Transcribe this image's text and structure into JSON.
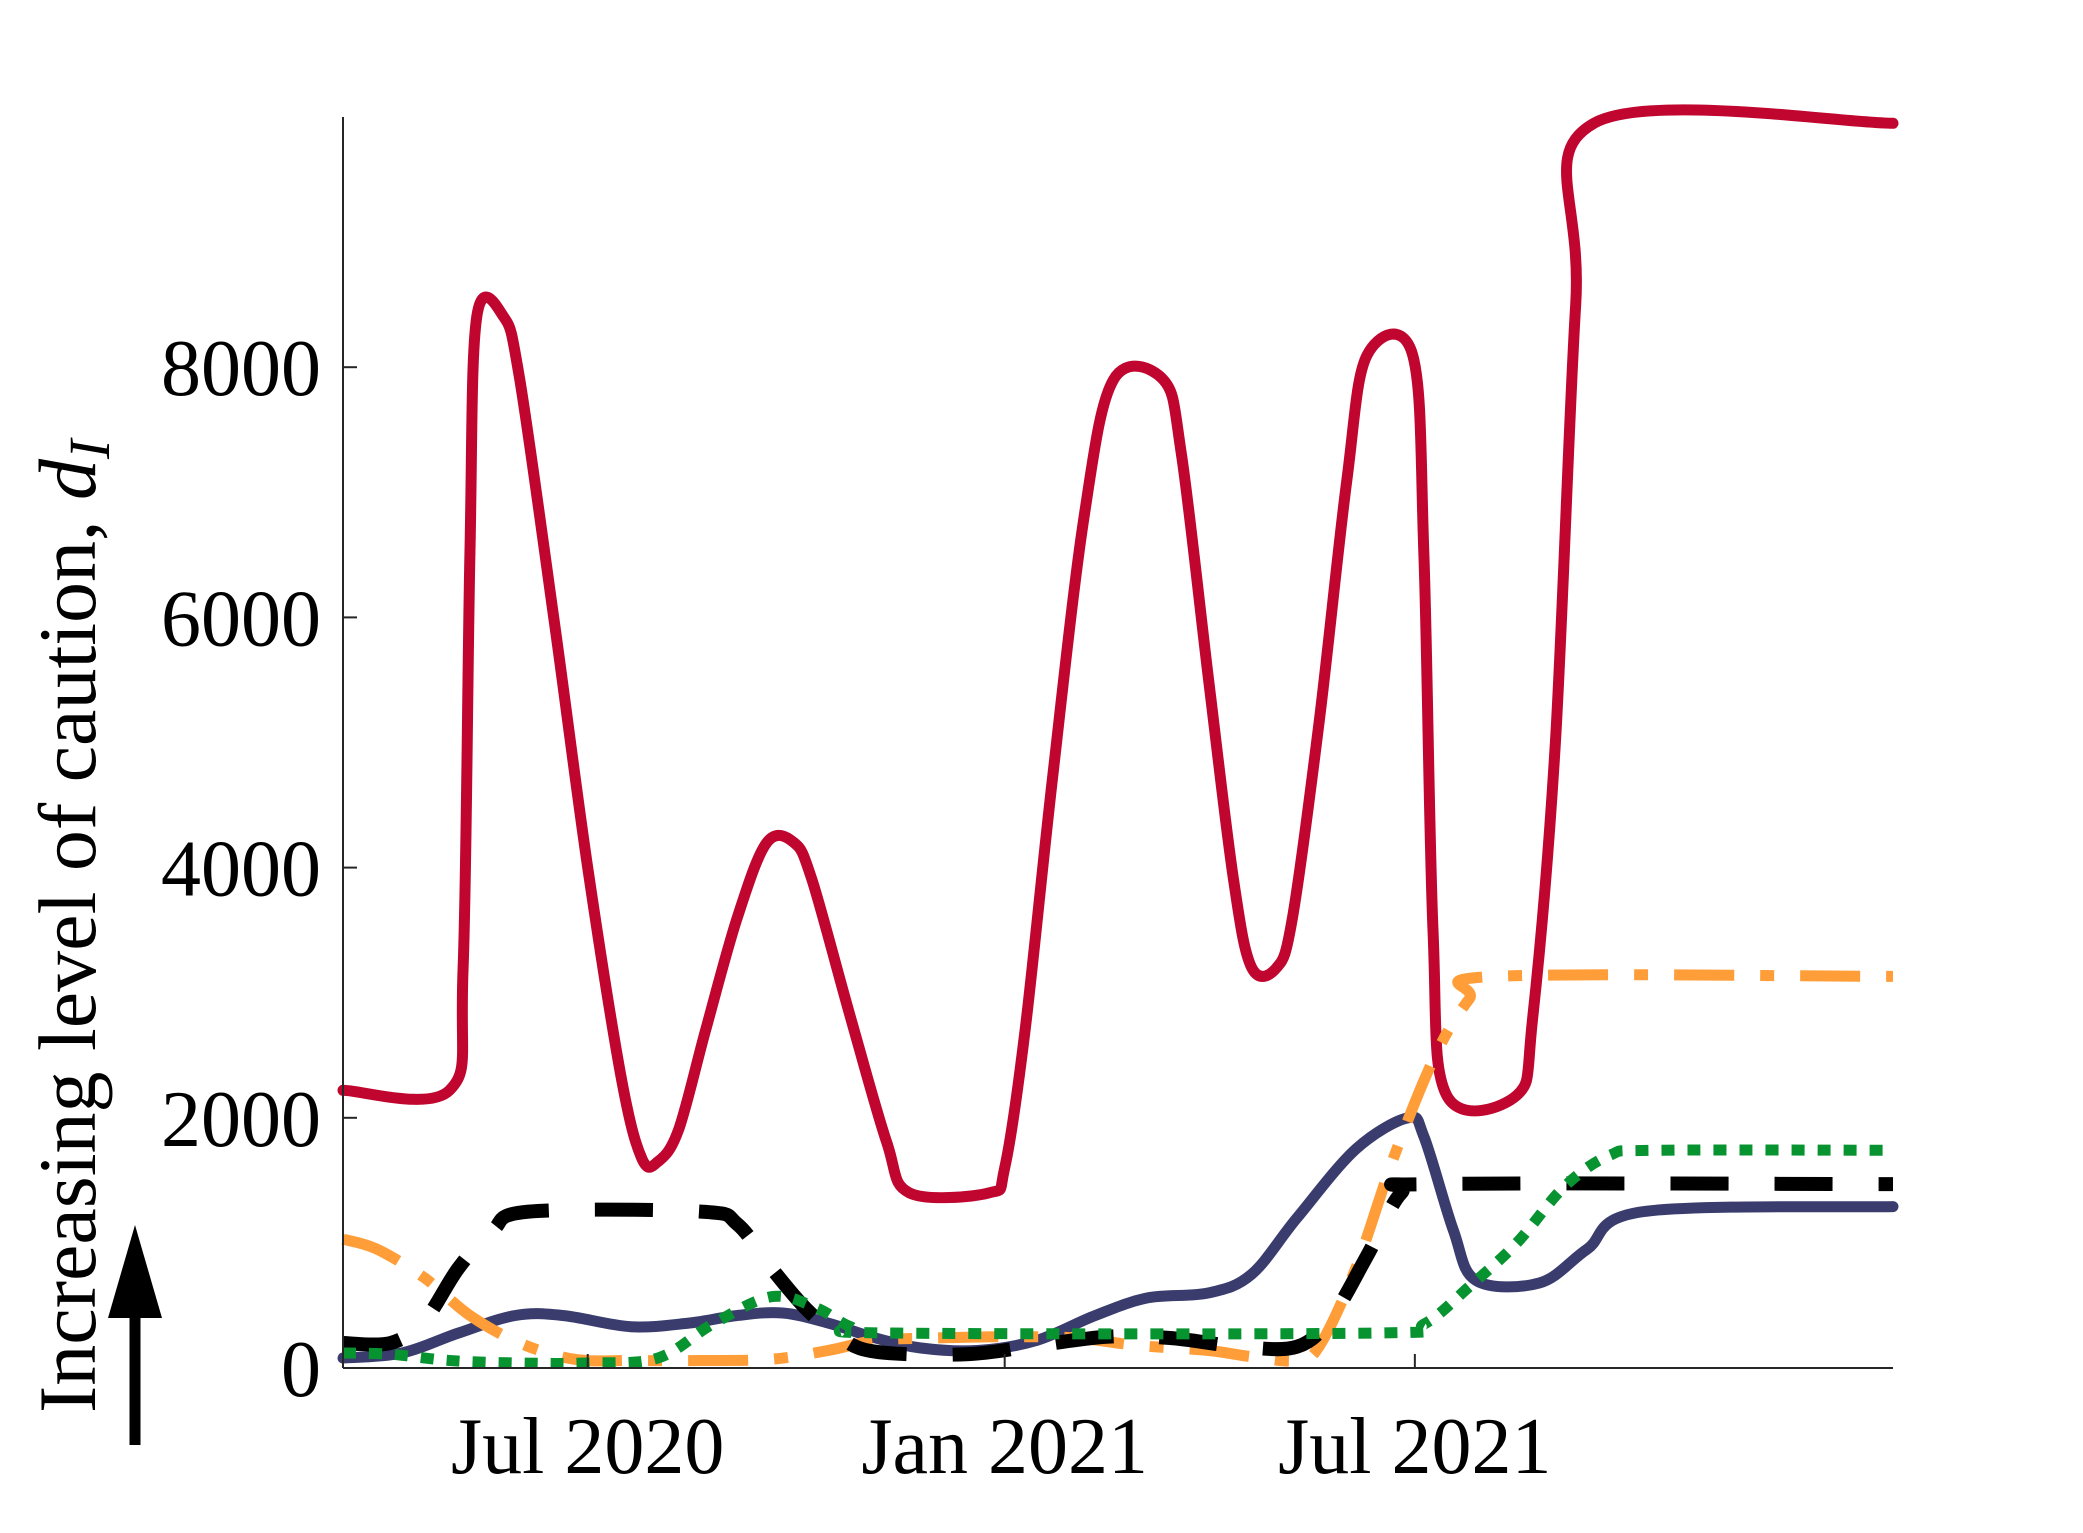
{
  "chart_data": {
    "type": "line",
    "title": "",
    "xlabel": "",
    "ylabel": "Increasing level of caution, ",
    "ylabel_symbol": "d",
    "ylabel_subscript": "I",
    "ylim": [
      0,
      10000
    ],
    "xlim": [
      "2020-03-15",
      "2022-01-28"
    ],
    "grid": false,
    "legend": "none",
    "x_ticks": [
      {
        "date": "2020-07-01",
        "label": "Jul 2020"
      },
      {
        "date": "2021-01-01",
        "label": "Jan 2021"
      },
      {
        "date": "2021-07-01",
        "label": "Jul 2021"
      }
    ],
    "y_ticks": [
      {
        "value": 0,
        "label": "0"
      },
      {
        "value": 2000,
        "label": "2000"
      },
      {
        "value": 4000,
        "label": "4000"
      },
      {
        "value": 6000,
        "label": "6000"
      },
      {
        "value": 8000,
        "label": "8000"
      }
    ],
    "series": [
      {
        "color": "#c0062f",
        "style": "solid",
        "points": [
          [
            "2020-03-15",
            2220
          ],
          [
            "2020-05-01",
            2220
          ],
          [
            "2020-05-07",
            3200
          ],
          [
            "2020-05-10",
            6500
          ],
          [
            "2020-05-13",
            8400
          ],
          [
            "2020-05-25",
            8400
          ],
          [
            "2020-06-01",
            7900
          ],
          [
            "2020-06-16",
            6000
          ],
          [
            "2020-07-01",
            4000
          ],
          [
            "2020-07-16",
            2300
          ],
          [
            "2020-07-25",
            1670
          ],
          [
            "2020-08-01",
            1650
          ],
          [
            "2020-08-10",
            1900
          ],
          [
            "2020-08-22",
            2700
          ],
          [
            "2020-09-05",
            3600
          ],
          [
            "2020-09-18",
            4200
          ],
          [
            "2020-09-30",
            4200
          ],
          [
            "2020-10-08",
            3900
          ],
          [
            "2020-10-25",
            2800
          ],
          [
            "2020-11-10",
            1800
          ],
          [
            "2020-11-20",
            1400
          ],
          [
            "2020-12-25",
            1400
          ],
          [
            "2021-01-01",
            1600
          ],
          [
            "2021-01-10",
            2700
          ],
          [
            "2021-01-22",
            4700
          ],
          [
            "2021-02-05",
            6800
          ],
          [
            "2021-02-18",
            7900
          ],
          [
            "2021-03-12",
            7900
          ],
          [
            "2021-03-20",
            7300
          ],
          [
            "2021-04-01",
            5500
          ],
          [
            "2021-04-12",
            3900
          ],
          [
            "2021-04-20",
            3200
          ],
          [
            "2021-05-01",
            3200
          ],
          [
            "2021-05-08",
            3600
          ],
          [
            "2021-05-20",
            5200
          ],
          [
            "2021-06-01",
            7100
          ],
          [
            "2021-06-10",
            8100
          ],
          [
            "2021-06-30",
            8100
          ],
          [
            "2021-07-05",
            6500
          ],
          [
            "2021-07-09",
            3500
          ],
          [
            "2021-07-15",
            2180
          ],
          [
            "2021-08-15",
            2180
          ],
          [
            "2021-08-22",
            2800
          ],
          [
            "2021-09-01",
            5000
          ],
          [
            "2021-09-10",
            8500
          ],
          [
            "2021-09-18",
            9950
          ],
          [
            "2022-01-28",
            9950
          ]
        ]
      },
      {
        "color": "#3a3c6e",
        "style": "solid",
        "points": [
          [
            "2020-03-15",
            80
          ],
          [
            "2020-04-10",
            120
          ],
          [
            "2020-05-05",
            280
          ],
          [
            "2020-05-30",
            420
          ],
          [
            "2020-06-20",
            420
          ],
          [
            "2020-07-20",
            330
          ],
          [
            "2020-08-15",
            360
          ],
          [
            "2020-09-05",
            420
          ],
          [
            "2020-09-25",
            440
          ],
          [
            "2020-10-15",
            360
          ],
          [
            "2020-11-05",
            240
          ],
          [
            "2020-11-25",
            160
          ],
          [
            "2020-12-20",
            140
          ],
          [
            "2021-01-15",
            220
          ],
          [
            "2021-02-10",
            420
          ],
          [
            "2021-03-05",
            560
          ],
          [
            "2021-04-01",
            600
          ],
          [
            "2021-04-20",
            750
          ],
          [
            "2021-05-10",
            1200
          ],
          [
            "2021-06-05",
            1750
          ],
          [
            "2021-06-28",
            2000
          ],
          [
            "2021-07-05",
            1850
          ],
          [
            "2021-07-18",
            1100
          ],
          [
            "2021-07-28",
            700
          ],
          [
            "2021-08-25",
            680
          ],
          [
            "2021-09-15",
            950
          ],
          [
            "2021-10-10",
            1250
          ],
          [
            "2022-01-28",
            1290
          ]
        ]
      },
      {
        "color": "#ff9d38",
        "style": "dashdot",
        "points": [
          [
            "2020-03-15",
            1030
          ],
          [
            "2020-03-30",
            950
          ],
          [
            "2020-04-20",
            720
          ],
          [
            "2020-05-10",
            420
          ],
          [
            "2020-06-01",
            200
          ],
          [
            "2020-06-25",
            70
          ],
          [
            "2020-07-20",
            60
          ],
          [
            "2020-08-20",
            60
          ],
          [
            "2020-09-20",
            70
          ],
          [
            "2020-10-15",
            140
          ],
          [
            "2020-11-05",
            220
          ],
          [
            "2020-12-01",
            240
          ],
          [
            "2021-01-01",
            250
          ],
          [
            "2021-02-01",
            240
          ],
          [
            "2021-03-01",
            180
          ],
          [
            "2021-04-01",
            140
          ],
          [
            "2021-04-20",
            90
          ],
          [
            "2021-05-10",
            60
          ],
          [
            "2021-05-20",
            180
          ],
          [
            "2021-06-05",
            800
          ],
          [
            "2021-06-22",
            1700
          ],
          [
            "2021-07-10",
            2500
          ],
          [
            "2021-07-25",
            2950
          ],
          [
            "2021-08-05",
            3130
          ],
          [
            "2022-01-28",
            3130
          ]
        ]
      },
      {
        "color": "#000000",
        "style": "dashed",
        "points": [
          [
            "2020-03-15",
            200
          ],
          [
            "2020-04-05",
            200
          ],
          [
            "2020-04-20",
            380
          ],
          [
            "2020-05-05",
            800
          ],
          [
            "2020-05-20",
            1100
          ],
          [
            "2020-06-05",
            1250
          ],
          [
            "2020-08-20",
            1250
          ],
          [
            "2020-09-05",
            1150
          ],
          [
            "2020-09-20",
            800
          ],
          [
            "2020-10-05",
            480
          ],
          [
            "2020-10-20",
            250
          ],
          [
            "2020-11-05",
            130
          ],
          [
            "2020-12-15",
            110
          ],
          [
            "2021-01-15",
            180
          ],
          [
            "2021-02-15",
            250
          ],
          [
            "2021-03-15",
            240
          ],
          [
            "2021-04-15",
            170
          ],
          [
            "2021-05-10",
            170
          ],
          [
            "2021-05-25",
            400
          ],
          [
            "2021-06-10",
            900
          ],
          [
            "2021-06-25",
            1400
          ],
          [
            "2021-07-10",
            1470
          ],
          [
            "2022-01-28",
            1470
          ]
        ]
      },
      {
        "color": "#089331",
        "style": "dotted",
        "points": [
          [
            "2020-03-15",
            120
          ],
          [
            "2020-04-05",
            110
          ],
          [
            "2020-05-01",
            60
          ],
          [
            "2020-06-01",
            40
          ],
          [
            "2020-07-01",
            40
          ],
          [
            "2020-08-01",
            80
          ],
          [
            "2020-08-25",
            350
          ],
          [
            "2020-09-20",
            570
          ],
          [
            "2020-10-10",
            480
          ],
          [
            "2020-10-25",
            330
          ],
          [
            "2020-11-10",
            280
          ],
          [
            "2021-06-15",
            280
          ],
          [
            "2021-07-05",
            350
          ],
          [
            "2021-07-25",
            650
          ],
          [
            "2021-08-15",
            1000
          ],
          [
            "2021-09-05",
            1450
          ],
          [
            "2021-09-25",
            1700
          ],
          [
            "2021-10-15",
            1740
          ],
          [
            "2022-01-28",
            1740
          ]
        ]
      }
    ]
  },
  "annotation": {
    "arrow": "up-arrow"
  }
}
